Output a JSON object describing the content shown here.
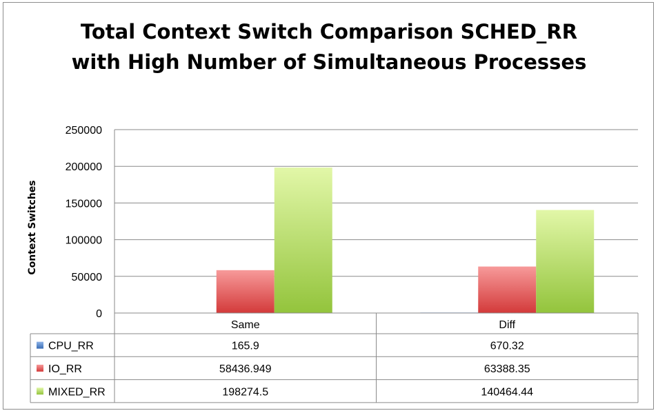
{
  "chart_data": {
    "type": "bar",
    "title_line1": "Total Context Switch Comparison SCHED_RR",
    "title_line2": "with High Number of Simultaneous Processes",
    "xlabel": "",
    "ylabel": "Context Switches",
    "ylim": [
      0,
      250000
    ],
    "yticks": [
      0,
      50000,
      100000,
      150000,
      200000,
      250000
    ],
    "grid": true,
    "legend_placement": "data-table",
    "categories": [
      "Same",
      "Diff"
    ],
    "series": [
      {
        "name": "CPU_RR",
        "color": "#4a7ebb",
        "values": [
          165.9,
          670.32
        ],
        "labels": [
          "165.9",
          "670.32"
        ]
      },
      {
        "name": "IO_RR",
        "color": "#d93a3a",
        "values": [
          58436.949,
          63388.35
        ],
        "labels": [
          "58436.949",
          "63388.35"
        ]
      },
      {
        "name": "MIXED_RR",
        "color": "#9bca3e",
        "values": [
          198274.5,
          140464.44
        ],
        "labels": [
          "198274.5",
          "140464.44"
        ]
      }
    ]
  }
}
